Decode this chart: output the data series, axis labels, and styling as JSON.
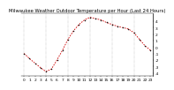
{
  "title": "Milwaukee Weather Outdoor Temperature per Hour (Last 24 Hours)",
  "x_labels": [
    "0",
    "1",
    "2",
    "3",
    "4",
    "5",
    "6",
    "7",
    "8",
    "9",
    "10",
    "11",
    "12",
    "13",
    "14",
    "15",
    "16",
    "17",
    "18",
    "19",
    "20",
    "21",
    "22",
    "23"
  ],
  "y_values": [
    -1.0,
    -1.8,
    -2.5,
    -3.2,
    -3.8,
    -3.4,
    -2.0,
    -0.5,
    1.2,
    2.5,
    3.5,
    4.2,
    4.6,
    4.4,
    4.2,
    3.8,
    3.5,
    3.2,
    3.0,
    2.8,
    2.2,
    1.2,
    0.2,
    -0.5
  ],
  "ylim": [
    -4.5,
    5.2
  ],
  "yticks": [
    4,
    3,
    2,
    1,
    0,
    -1,
    -2,
    -3,
    -4
  ],
  "ytick_labels": [
    "4",
    "3",
    "2",
    "1",
    "0",
    "-1",
    "-2",
    "-3",
    "-4"
  ],
  "line_color": "#cc0000",
  "marker_color": "#111111",
  "bg_color": "#ffffff",
  "plot_bg_color": "#ffffff",
  "title_fontsize": 3.8,
  "tick_fontsize": 3.2,
  "grid_color": "#999999",
  "line_width": 0.6,
  "marker_size": 1.2,
  "vgrid_positions": [
    0,
    4,
    8,
    12,
    16,
    20
  ]
}
